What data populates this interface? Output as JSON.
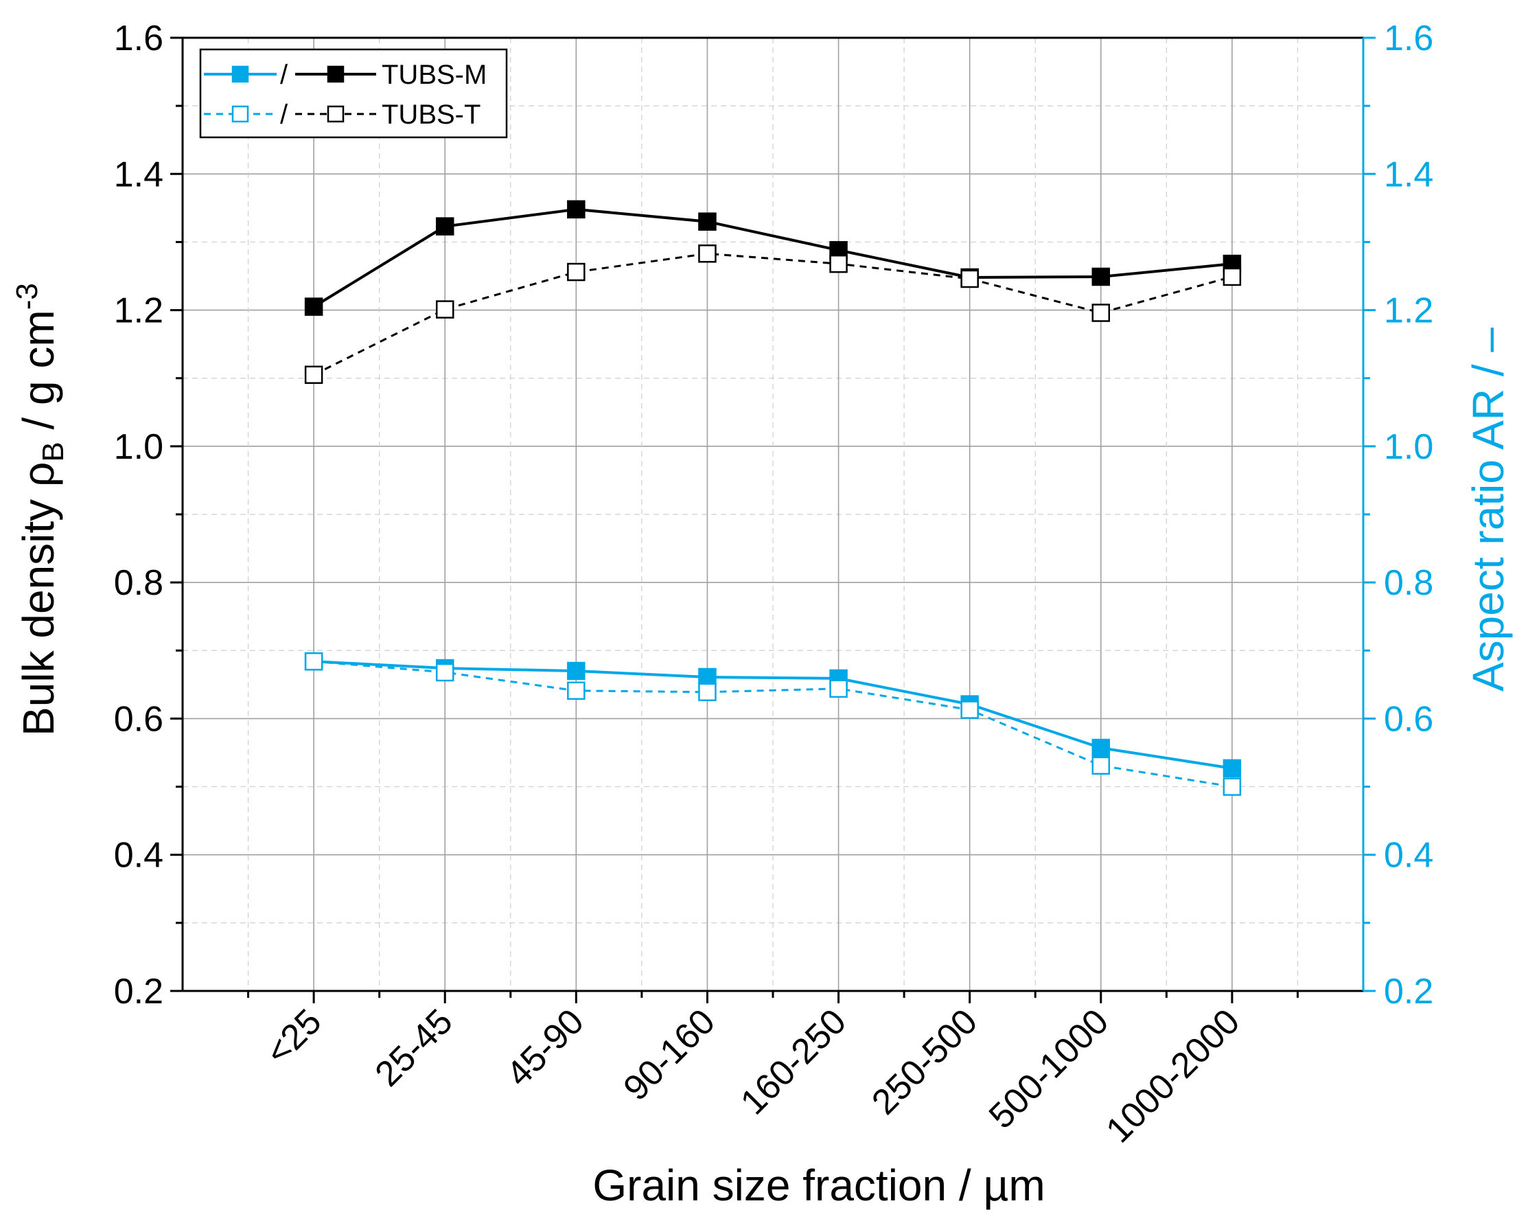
{
  "chart_data": {
    "type": "line",
    "title": "",
    "xlabel": "Grain size fraction / µm",
    "ylabel_left": {
      "main": "Bulk density ρ",
      "sub": "B",
      "unit": " / g cm",
      "sup": "-3"
    },
    "ylabel_right": "Aspect ratio AR / –",
    "categories": [
      "<25",
      "25-45",
      "45-90",
      "90-160",
      "160-250",
      "250-500",
      "500-1000",
      "1000-2000"
    ],
    "ylim_left": [
      0.2,
      1.6
    ],
    "ylim_right": [
      0.2,
      1.6
    ],
    "yticks_left": [
      "0.2",
      "0.4",
      "0.6",
      "0.8",
      "1.0",
      "1.2",
      "1.4",
      "1.6"
    ],
    "yticks_right": [
      "0.2",
      "0.4",
      "0.6",
      "0.8",
      "1.0",
      "1.2",
      "1.4",
      "1.6"
    ],
    "grid": true,
    "legend_position": "top-left",
    "colors": {
      "density": "#000000",
      "aspect": "#00a8e8",
      "grid": "#a0a0a0"
    },
    "series": [
      {
        "name": "Bulk density TUBS-M",
        "axis": "left",
        "values": [
          1.205,
          1.323,
          1.348,
          1.33,
          1.288,
          1.248,
          1.249,
          1.268
        ],
        "marker": "filled",
        "dash": "solid",
        "color_key": "density"
      },
      {
        "name": "Bulk density TUBS-T",
        "axis": "left",
        "values": [
          1.105,
          1.201,
          1.256,
          1.283,
          1.268,
          1.246,
          1.196,
          1.249
        ],
        "marker": "open",
        "dash": "dashed",
        "color_key": "density"
      },
      {
        "name": "Aspect ratio TUBS-M",
        "axis": "right",
        "values": [
          0.684,
          0.674,
          0.67,
          0.661,
          0.659,
          0.621,
          0.557,
          0.527
        ],
        "marker": "filled",
        "dash": "solid",
        "color_key": "aspect"
      },
      {
        "name": "Aspect ratio TUBS-T",
        "axis": "right",
        "values": [
          0.684,
          0.668,
          0.641,
          0.639,
          0.644,
          0.613,
          0.531,
          0.5
        ],
        "marker": "open",
        "dash": "dashed",
        "color_key": "aspect"
      }
    ],
    "legend": {
      "separator": "/",
      "entries": [
        {
          "label": "TUBS-M",
          "marker": "filled",
          "dash": "solid"
        },
        {
          "label": "TUBS-T",
          "marker": "open",
          "dash": "dashed"
        }
      ]
    }
  }
}
